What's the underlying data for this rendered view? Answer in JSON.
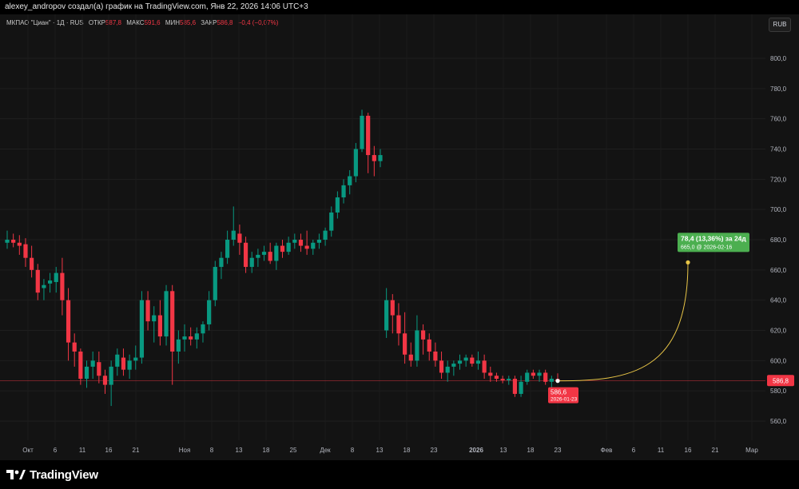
{
  "header": {
    "attribution": "alexey_andropov создал(а) график на TradingView.com, Янв 22, 2026 14:06 UTC+3"
  },
  "legend": {
    "symbol": "МКПАО \"Циан\" · 1Д · RUS",
    "open_label": "ОТКР",
    "open_value": "587,8",
    "high_label": "МАКС",
    "high_value": "591,6",
    "low_label": "МИН",
    "low_value": "585,6",
    "close_label": "ЗАКР",
    "close_value": "586,8",
    "change": "−0,4 (−0,07%)"
  },
  "currency_button": "RUB",
  "price_badge": "586,8",
  "last_point_label": {
    "price": "586,6",
    "date": "2026-01-23"
  },
  "projection_label": {
    "line1": "78,4 (13,36%) за 24д",
    "line2": "665,0 @ 2026-02-16"
  },
  "brand": "TradingView",
  "colors": {
    "up": "#089981",
    "down": "#f23645",
    "projection": "#e8c547",
    "badge": "#f23645",
    "target_box": "#4caf50"
  },
  "chart_data": {
    "type": "candlestick",
    "y_axis": {
      "range": [
        550,
        810
      ],
      "ticks": [
        "560,0",
        "580,0",
        "600,0",
        "620,0",
        "640,0",
        "660,0",
        "680,0",
        "700,0",
        "720,0",
        "740,0",
        "760,0",
        "780,0",
        "800,0"
      ],
      "position": "right"
    },
    "x_axis_ticks": [
      "Окт",
      "6",
      "11",
      "16",
      "21",
      "Ноя",
      "8",
      "13",
      "18",
      "25",
      "Дек",
      "8",
      "13",
      "18",
      "23",
      "2026",
      "13",
      "18",
      "23",
      "Фев",
      "6",
      "11",
      "16",
      "21",
      "Мар"
    ],
    "candles": [
      {
        "o": 678,
        "h": 686,
        "l": 674,
        "c": 680
      },
      {
        "o": 680,
        "h": 684,
        "l": 675,
        "c": 678
      },
      {
        "o": 678,
        "h": 683,
        "l": 670,
        "c": 676
      },
      {
        "o": 677,
        "h": 681,
        "l": 662,
        "c": 668
      },
      {
        "o": 668,
        "h": 676,
        "l": 655,
        "c": 660
      },
      {
        "o": 660,
        "h": 664,
        "l": 640,
        "c": 645
      },
      {
        "o": 648,
        "h": 654,
        "l": 640,
        "c": 650
      },
      {
        "o": 651,
        "h": 658,
        "l": 645,
        "c": 653
      },
      {
        "o": 652,
        "h": 662,
        "l": 645,
        "c": 658
      },
      {
        "o": 658,
        "h": 668,
        "l": 630,
        "c": 640
      },
      {
        "o": 640,
        "h": 648,
        "l": 600,
        "c": 612
      },
      {
        "o": 612,
        "h": 618,
        "l": 596,
        "c": 606
      },
      {
        "o": 606,
        "h": 608,
        "l": 584,
        "c": 588
      },
      {
        "o": 588,
        "h": 600,
        "l": 582,
        "c": 596
      },
      {
        "o": 596,
        "h": 606,
        "l": 588,
        "c": 600
      },
      {
        "o": 599,
        "h": 606,
        "l": 585,
        "c": 590
      },
      {
        "o": 590,
        "h": 594,
        "l": 578,
        "c": 584
      },
      {
        "o": 584,
        "h": 600,
        "l": 570,
        "c": 596
      },
      {
        "o": 596,
        "h": 608,
        "l": 590,
        "c": 604
      },
      {
        "o": 602,
        "h": 608,
        "l": 590,
        "c": 594
      },
      {
        "o": 594,
        "h": 604,
        "l": 588,
        "c": 600
      },
      {
        "o": 600,
        "h": 610,
        "l": 594,
        "c": 602
      },
      {
        "o": 602,
        "h": 646,
        "l": 598,
        "c": 640
      },
      {
        "o": 640,
        "h": 646,
        "l": 620,
        "c": 626
      },
      {
        "o": 626,
        "h": 636,
        "l": 612,
        "c": 630
      },
      {
        "o": 630,
        "h": 640,
        "l": 610,
        "c": 616
      },
      {
        "o": 616,
        "h": 650,
        "l": 610,
        "c": 646
      },
      {
        "o": 646,
        "h": 650,
        "l": 584,
        "c": 606
      },
      {
        "o": 606,
        "h": 620,
        "l": 598,
        "c": 614
      },
      {
        "o": 614,
        "h": 624,
        "l": 606,
        "c": 616
      },
      {
        "o": 616,
        "h": 622,
        "l": 610,
        "c": 614
      },
      {
        "o": 614,
        "h": 622,
        "l": 608,
        "c": 618
      },
      {
        "o": 618,
        "h": 626,
        "l": 612,
        "c": 624
      },
      {
        "o": 624,
        "h": 646,
        "l": 620,
        "c": 640
      },
      {
        "o": 640,
        "h": 666,
        "l": 636,
        "c": 662
      },
      {
        "o": 662,
        "h": 672,
        "l": 654,
        "c": 668
      },
      {
        "o": 668,
        "h": 686,
        "l": 664,
        "c": 680
      },
      {
        "o": 680,
        "h": 702,
        "l": 676,
        "c": 686
      },
      {
        "o": 684,
        "h": 690,
        "l": 670,
        "c": 678
      },
      {
        "o": 678,
        "h": 682,
        "l": 658,
        "c": 662
      },
      {
        "o": 662,
        "h": 672,
        "l": 658,
        "c": 668
      },
      {
        "o": 668,
        "h": 674,
        "l": 662,
        "c": 670
      },
      {
        "o": 670,
        "h": 676,
        "l": 666,
        "c": 672
      },
      {
        "o": 672,
        "h": 678,
        "l": 664,
        "c": 666
      },
      {
        "o": 666,
        "h": 678,
        "l": 660,
        "c": 676
      },
      {
        "o": 676,
        "h": 680,
        "l": 668,
        "c": 672
      },
      {
        "o": 672,
        "h": 682,
        "l": 670,
        "c": 678
      },
      {
        "o": 678,
        "h": 684,
        "l": 674,
        "c": 680
      },
      {
        "o": 680,
        "h": 684,
        "l": 672,
        "c": 676
      },
      {
        "o": 676,
        "h": 686,
        "l": 670,
        "c": 674
      },
      {
        "o": 674,
        "h": 680,
        "l": 670,
        "c": 678
      },
      {
        "o": 678,
        "h": 684,
        "l": 674,
        "c": 680
      },
      {
        "o": 680,
        "h": 688,
        "l": 676,
        "c": 686
      },
      {
        "o": 686,
        "h": 702,
        "l": 682,
        "c": 698
      },
      {
        "o": 698,
        "h": 712,
        "l": 694,
        "c": 708
      },
      {
        "o": 708,
        "h": 720,
        "l": 704,
        "c": 716
      },
      {
        "o": 716,
        "h": 726,
        "l": 710,
        "c": 722
      },
      {
        "o": 722,
        "h": 744,
        "l": 718,
        "c": 740
      },
      {
        "o": 740,
        "h": 766,
        "l": 738,
        "c": 762
      },
      {
        "o": 762,
        "h": 764,
        "l": 724,
        "c": 736
      },
      {
        "o": 736,
        "h": 742,
        "l": 722,
        "c": 732
      },
      {
        "o": 732,
        "h": 740,
        "l": 728,
        "c": 736
      },
      {
        "o": 620,
        "h": 648,
        "l": 615,
        "c": 640
      },
      {
        "o": 640,
        "h": 644,
        "l": 618,
        "c": 630
      },
      {
        "o": 630,
        "h": 638,
        "l": 610,
        "c": 618
      },
      {
        "o": 618,
        "h": 632,
        "l": 598,
        "c": 604
      },
      {
        "o": 604,
        "h": 612,
        "l": 596,
        "c": 600
      },
      {
        "o": 600,
        "h": 630,
        "l": 596,
        "c": 620
      },
      {
        "o": 620,
        "h": 624,
        "l": 604,
        "c": 614
      },
      {
        "o": 614,
        "h": 618,
        "l": 600,
        "c": 606
      },
      {
        "o": 606,
        "h": 612,
        "l": 596,
        "c": 600
      },
      {
        "o": 600,
        "h": 606,
        "l": 588,
        "c": 592
      },
      {
        "o": 592,
        "h": 600,
        "l": 586,
        "c": 596
      },
      {
        "o": 596,
        "h": 600,
        "l": 590,
        "c": 598
      },
      {
        "o": 598,
        "h": 604,
        "l": 594,
        "c": 600
      },
      {
        "o": 600,
        "h": 604,
        "l": 596,
        "c": 602
      },
      {
        "o": 602,
        "h": 604,
        "l": 596,
        "c": 598
      },
      {
        "o": 598,
        "h": 606,
        "l": 594,
        "c": 600
      },
      {
        "o": 600,
        "h": 604,
        "l": 588,
        "c": 592
      },
      {
        "o": 592,
        "h": 596,
        "l": 586,
        "c": 590
      },
      {
        "o": 590,
        "h": 592,
        "l": 586,
        "c": 588
      },
      {
        "o": 588,
        "h": 590,
        "l": 585,
        "c": 587
      },
      {
        "o": 587,
        "h": 590,
        "l": 584,
        "c": 588
      },
      {
        "o": 588,
        "h": 590,
        "l": 576,
        "c": 578
      },
      {
        "o": 578,
        "h": 590,
        "l": 576,
        "c": 586
      },
      {
        "o": 586,
        "h": 594,
        "l": 584,
        "c": 592
      },
      {
        "o": 592,
        "h": 594,
        "l": 588,
        "c": 590
      },
      {
        "o": 590,
        "h": 594,
        "l": 586,
        "c": 592
      },
      {
        "o": 592,
        "h": 594,
        "l": 584,
        "c": 586
      },
      {
        "o": 586,
        "h": 590,
        "l": 582,
        "c": 588
      },
      {
        "o": 587.8,
        "h": 591.6,
        "l": 585.6,
        "c": 586.8
      }
    ],
    "projection": {
      "start": {
        "date": "2026-01-23",
        "price": 586.6
      },
      "end": {
        "date": "2026-02-16",
        "price": 665.0
      }
    },
    "last_price_line": 586.8
  }
}
